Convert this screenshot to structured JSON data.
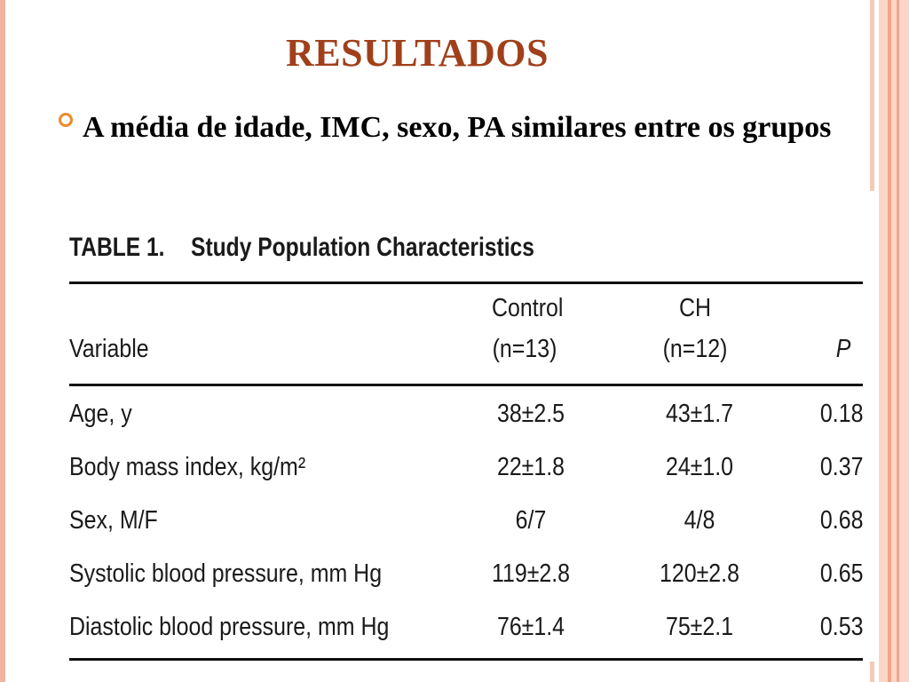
{
  "slide": {
    "title": "RESULTADOS",
    "bullet_text": "A média de idade, IMC, sexo, PA similares entre os grupos"
  },
  "table": {
    "caption_number": "TABLE 1.",
    "caption_title": "Study Population Characteristics",
    "headers": {
      "variable": "Variable",
      "control_line1": "Control",
      "control_line2": "(n=13)",
      "ch_line1": "CH",
      "ch_line2": "(n=12)",
      "p": "P"
    },
    "rows": [
      {
        "variable": "Age, y",
        "control": "38±2.5",
        "ch": "43±1.7",
        "p": "0.18"
      },
      {
        "variable": "Body mass index, kg/m²",
        "control": "22±1.8",
        "ch": "24±1.0",
        "p": "0.37"
      },
      {
        "variable": "Sex, M/F",
        "control": "6/7",
        "ch": "4/8",
        "p": "0.68"
      },
      {
        "variable": "Systolic blood pressure, mm Hg",
        "control": "119±2.8",
        "ch": "120±2.8",
        "p": "0.65"
      },
      {
        "variable": "Diastolic blood pressure, mm Hg",
        "control": "76±1.4",
        "ch": "75±2.1",
        "p": "0.53"
      }
    ]
  },
  "colors": {
    "title": "#a0401a",
    "bullet_icon": "#ec8a2a",
    "border_decoration": "#f6c9b9"
  }
}
